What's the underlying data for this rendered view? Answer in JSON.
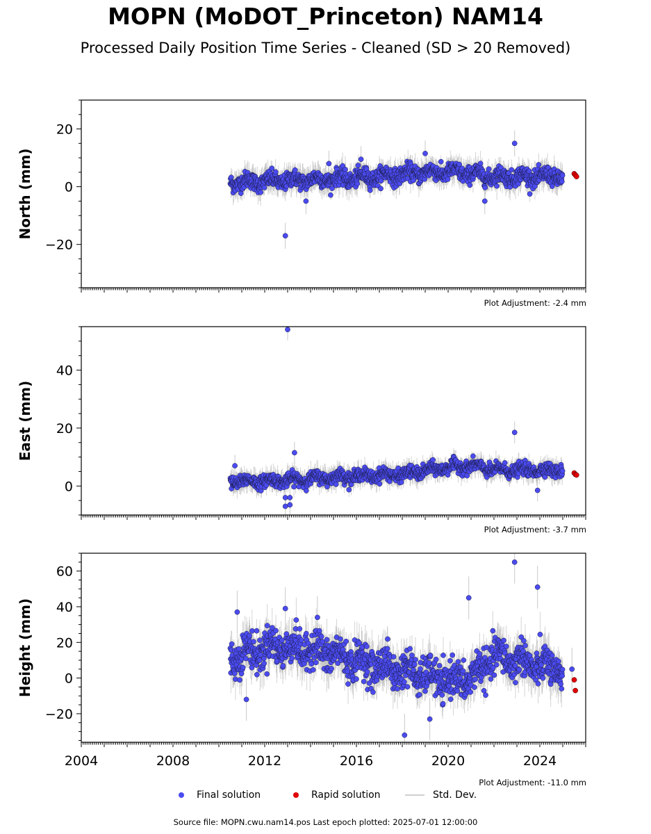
{
  "header": {
    "title": "MOPN (MoDOT_Princeton) NAM14",
    "subtitle": "Processed Daily Position Time Series - Cleaned (SD > 20 Removed)"
  },
  "legend": {
    "final_label": "Final solution",
    "rapid_label": "Rapid solution",
    "std_label": "Std. Dev."
  },
  "footer": {
    "source_text": "Source file: MOPN.cwu.nam14.pos  Last epoch plotted: 2025-07-01 12:00:00"
  },
  "colors": {
    "final": "#4b4bf0",
    "rapid": "#e00000",
    "std": "#b0b0b0"
  },
  "chart_data": [
    {
      "type": "scatter",
      "ylabel": "North (mm)",
      "xlim": [
        2004,
        2026
      ],
      "ylim": [
        -35,
        30
      ],
      "yticks": [
        -20,
        0,
        20
      ],
      "adjustment": "Plot Adjustment: -2.4 mm",
      "final_range": [
        2010.5,
        2025.0
      ],
      "series": [
        {
          "name": "Final solution",
          "trend": [
            [
              2010.5,
              1.5
            ],
            [
              2012.5,
              2.0
            ],
            [
              2016.0,
              3.0
            ],
            [
              2019.0,
              5.0
            ],
            [
              2020.5,
              5.0
            ],
            [
              2022.0,
              3.5
            ],
            [
              2025.0,
              3.5
            ]
          ],
          "scatter": 2.0,
          "std": 3.0
        },
        {
          "name": "Rapid solution",
          "values": [
            [
              2025.5,
              4.5
            ],
            [
              2025.55,
              4.0
            ],
            [
              2025.6,
              3.5
            ]
          ]
        }
      ],
      "outliers": [
        [
          2012.9,
          -17
        ],
        [
          2022.9,
          15
        ],
        [
          2019.0,
          11.5
        ],
        [
          2014.8,
          8
        ],
        [
          2016.2,
          9.5
        ],
        [
          2021.6,
          -5
        ],
        [
          2013.8,
          -5
        ]
      ]
    },
    {
      "type": "scatter",
      "ylabel": "East (mm)",
      "xlim": [
        2004,
        2026
      ],
      "ylim": [
        -10,
        55
      ],
      "yticks": [
        0,
        20,
        40
      ],
      "adjustment": "Plot Adjustment: -3.7 mm",
      "final_range": [
        2010.5,
        2025.0
      ],
      "series": [
        {
          "name": "Final solution",
          "trend": [
            [
              2010.5,
              1.5
            ],
            [
              2013.0,
              2.0
            ],
            [
              2016.0,
              3.5
            ],
            [
              2018.0,
              4.0
            ],
            [
              2020.0,
              6.5
            ],
            [
              2021.0,
              7.0
            ],
            [
              2022.0,
              5.5
            ],
            [
              2025.0,
              5.5
            ]
          ],
          "scatter": 1.5,
          "std": 2.5
        },
        {
          "name": "Rapid solution",
          "values": [
            [
              2025.5,
              4.5
            ],
            [
              2025.55,
              4.0
            ],
            [
              2025.6,
              3.8
            ]
          ]
        }
      ],
      "outliers": [
        [
          2013.0,
          54
        ],
        [
          2022.9,
          18.5
        ],
        [
          2013.3,
          11.5
        ],
        [
          2010.7,
          7
        ],
        [
          2012.9,
          -7
        ],
        [
          2013.1,
          -6.5
        ],
        [
          2012.9,
          -4
        ],
        [
          2013.1,
          -4
        ],
        [
          2023.9,
          -1.5
        ]
      ]
    },
    {
      "type": "scatter",
      "ylabel": "Height (mm)",
      "xlim": [
        2004,
        2026
      ],
      "ylim": [
        -36,
        70
      ],
      "yticks": [
        -20,
        0,
        20,
        40,
        60
      ],
      "adjustment": "Plot Adjustment: -11.0 mm",
      "final_range": [
        2010.5,
        2025.0
      ],
      "xticks": [
        2004,
        2008,
        2012,
        2016,
        2020,
        2024
      ],
      "series": [
        {
          "name": "Final solution",
          "trend": [
            [
              2010.5,
              12
            ],
            [
              2012.5,
              18
            ],
            [
              2014.5,
              15
            ],
            [
              2016.5,
              8
            ],
            [
              2018.5,
              3
            ],
            [
              2020.0,
              -2
            ],
            [
              2021.0,
              0
            ],
            [
              2022.0,
              12
            ],
            [
              2023.0,
              10
            ],
            [
              2024.5,
              5
            ],
            [
              2025.0,
              3
            ]
          ],
          "scatter": 7.0,
          "std": 8.0
        },
        {
          "name": "Rapid solution",
          "values": [
            [
              2025.5,
              -1
            ],
            [
              2025.55,
              -7
            ]
          ]
        }
      ],
      "outliers": [
        [
          2022.9,
          65
        ],
        [
          2023.9,
          51
        ],
        [
          2020.9,
          45
        ],
        [
          2012.9,
          39
        ],
        [
          2010.8,
          37
        ],
        [
          2014.3,
          34
        ],
        [
          2018.1,
          -32
        ],
        [
          2019.2,
          -23
        ],
        [
          2011.2,
          -12
        ],
        [
          2025.4,
          5
        ]
      ]
    }
  ]
}
